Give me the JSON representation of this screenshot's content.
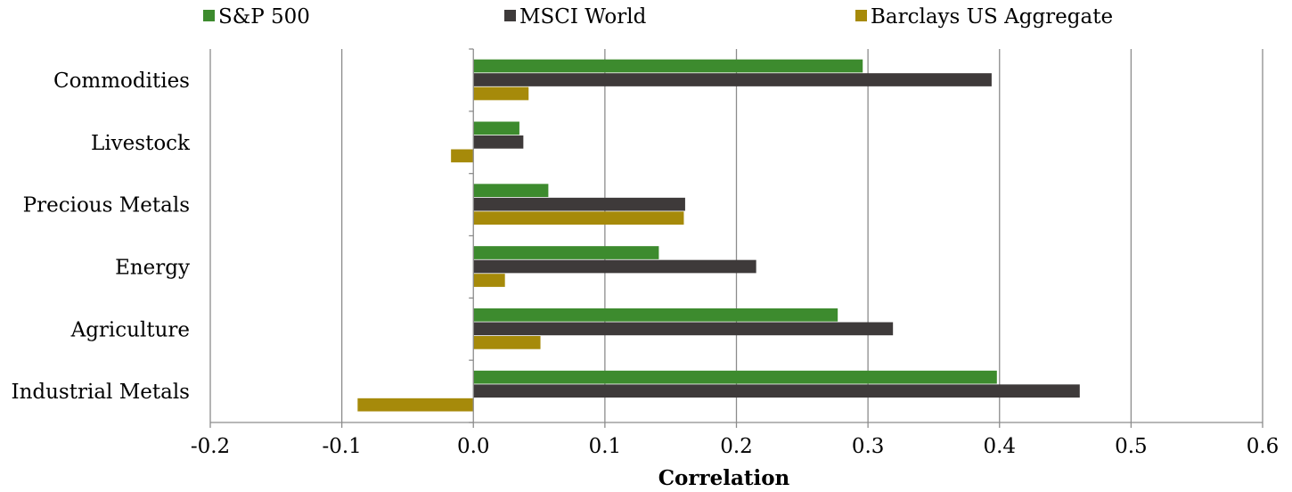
{
  "chart_data": {
    "type": "bar",
    "orientation": "horizontal",
    "xlabel": "Correlation",
    "ylabel": "",
    "xlim": [
      -0.2,
      0.6
    ],
    "x_ticks": [
      -0.2,
      -0.1,
      0.0,
      0.1,
      0.2,
      0.3,
      0.4,
      0.5,
      0.6
    ],
    "x_tick_labels": [
      "-0.2",
      "-0.1",
      "0.0",
      "0.1",
      "0.2",
      "0.3",
      "0.4",
      "0.5",
      "0.6"
    ],
    "grid": "vertical",
    "legend_position": "top",
    "categories": [
      "Commodities",
      "Livestock",
      "Precious Metals",
      "Energy",
      "Agriculture",
      "Industrial Metals"
    ],
    "series": [
      {
        "name": "S&P 500",
        "color": "#3d8b2e",
        "values": [
          0.296,
          0.035,
          0.057,
          0.141,
          0.277,
          0.398
        ]
      },
      {
        "name": "MSCI World",
        "color": "#3e3a3a",
        "values": [
          0.394,
          0.038,
          0.161,
          0.215,
          0.319,
          0.461
        ]
      },
      {
        "name": "Barclays US Aggregate",
        "color": "#a68a0a",
        "values": [
          0.042,
          -0.017,
          0.16,
          0.024,
          0.051,
          -0.088
        ]
      }
    ]
  }
}
